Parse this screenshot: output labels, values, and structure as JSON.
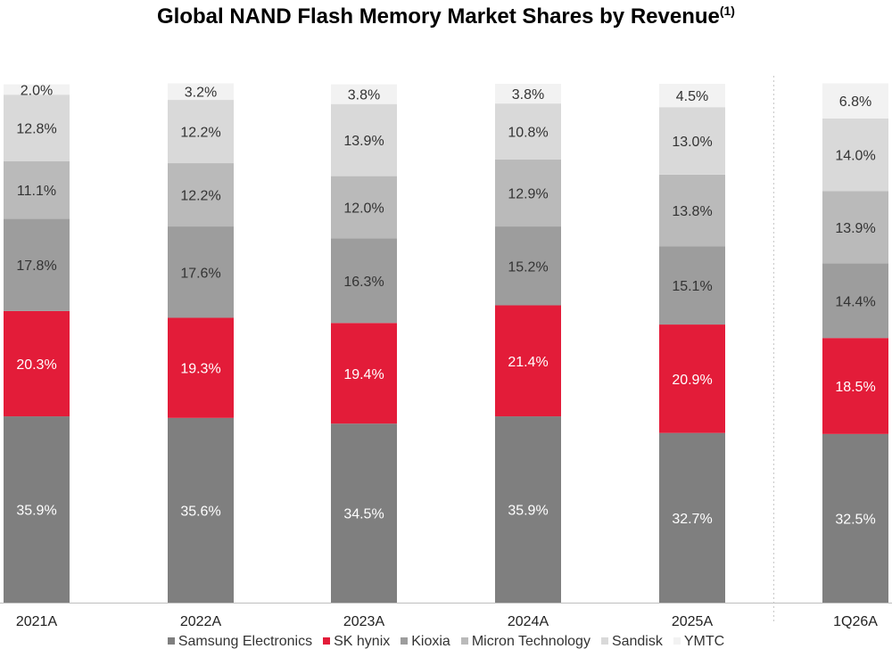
{
  "title": "Global NAND Flash Memory Market Shares by Revenue",
  "title_note": "(1)",
  "chart_data": {
    "type": "bar",
    "stacked": true,
    "categories": [
      "2021A",
      "2022A",
      "2023A",
      "2024A",
      "2025A",
      "1Q26A"
    ],
    "series": [
      {
        "name": "Samsung Electronics",
        "color": "#7f7f7f",
        "label_color": "#ffffff",
        "values": [
          35.9,
          35.6,
          34.5,
          35.9,
          32.7,
          32.5
        ]
      },
      {
        "name": "SK hynix",
        "color": "#e31c39",
        "label_color": "#ffffff",
        "values": [
          20.3,
          19.3,
          19.4,
          21.4,
          20.9,
          18.5
        ]
      },
      {
        "name": "Kioxia",
        "color": "#9d9d9d",
        "label_color": "#333333",
        "values": [
          17.8,
          17.6,
          16.3,
          15.2,
          15.1,
          14.4
        ]
      },
      {
        "name": "Micron Technology",
        "color": "#bababa",
        "label_color": "#333333",
        "values": [
          11.1,
          12.2,
          12.0,
          12.9,
          13.8,
          13.9
        ]
      },
      {
        "name": "Sandisk",
        "color": "#d9d9d9",
        "label_color": "#333333",
        "values": [
          12.8,
          12.2,
          13.9,
          10.8,
          13.0,
          14.0
        ]
      },
      {
        "name": "YMTC",
        "color": "#f2f2f2",
        "label_color": "#333333",
        "values": [
          2.0,
          3.2,
          3.8,
          3.8,
          4.5,
          6.8
        ]
      }
    ],
    "value_suffix": "%",
    "ylim": [
      0,
      100
    ],
    "grid": false,
    "legend_position": "bottom",
    "separator_before_category": "1Q26A"
  }
}
